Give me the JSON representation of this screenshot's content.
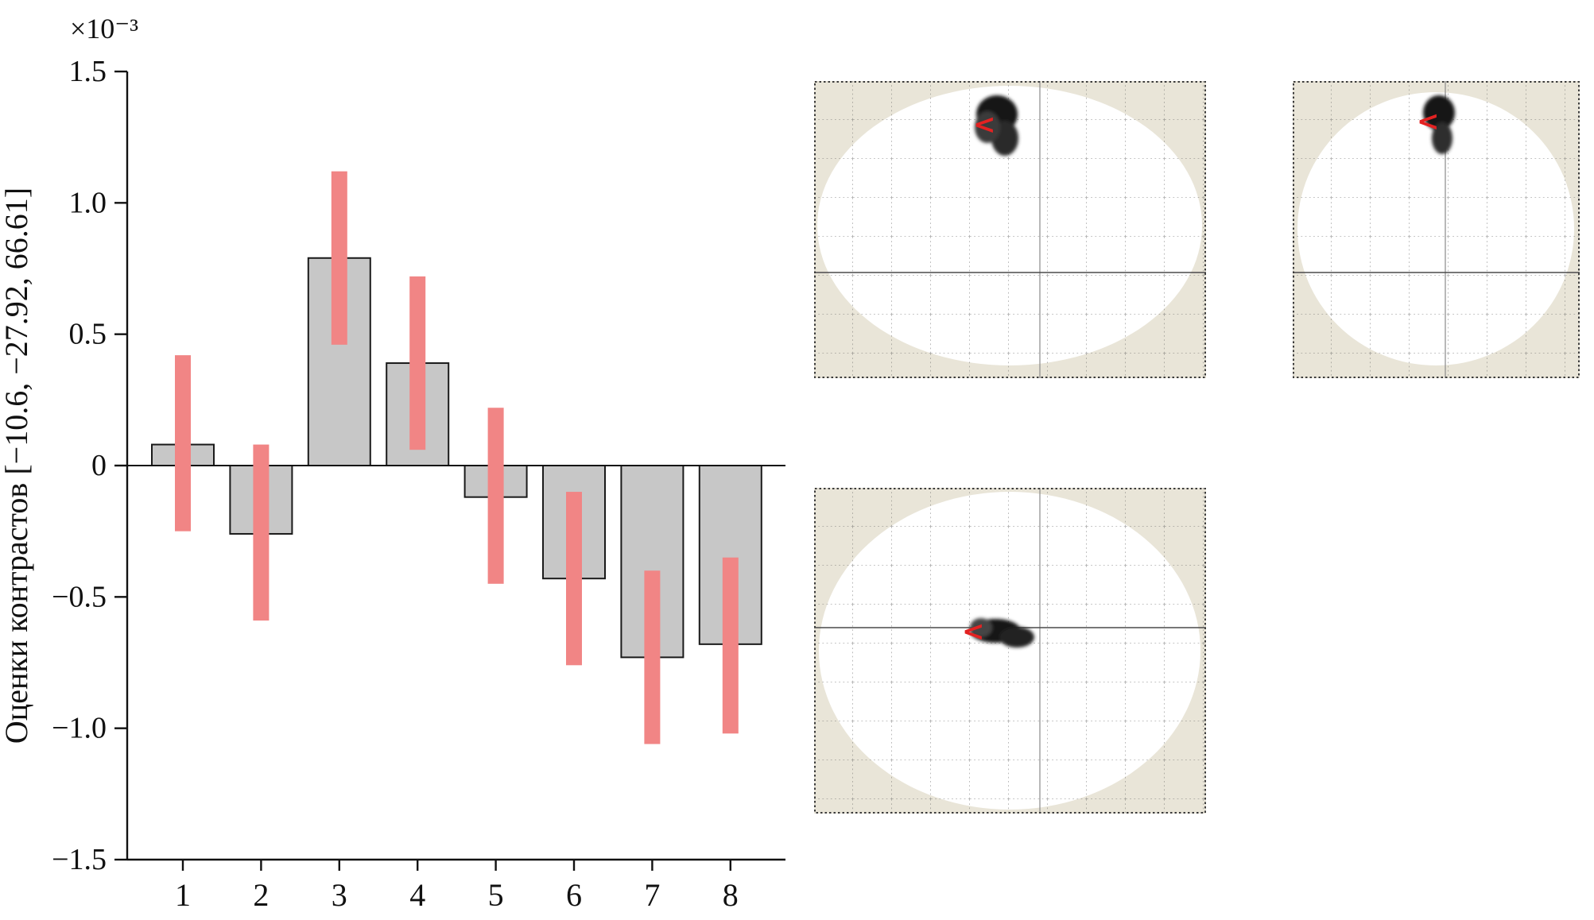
{
  "chart_data": {
    "type": "bar",
    "title": "",
    "xlabel": "",
    "ylabel": "Оценки контрастов [−10.6, −27.92, 66.61]",
    "scale_label": "×10⁻³",
    "units_multiplier": "1e-3",
    "categories": [
      "1",
      "2",
      "3",
      "4",
      "5",
      "6",
      "7",
      "8"
    ],
    "values_e3": [
      0.08,
      -0.26,
      0.79,
      0.39,
      -0.12,
      -0.43,
      -0.73,
      -0.68
    ],
    "error_low_e3": [
      -0.25,
      -0.59,
      0.46,
      0.06,
      -0.45,
      -0.76,
      -1.06,
      -1.02
    ],
    "error_high_e3": [
      0.42,
      0.08,
      1.12,
      0.72,
      0.22,
      -0.1,
      -0.4,
      -0.35
    ],
    "ylim_e3": [
      -1.5,
      1.5
    ],
    "yticks": [
      {
        "value": 1.5,
        "label": "1.5"
      },
      {
        "value": 1.0,
        "label": "1.0"
      },
      {
        "value": 0.5,
        "label": "0.5"
      },
      {
        "value": 0,
        "label": "0"
      },
      {
        "value": -0.5,
        "label": "−0.5"
      },
      {
        "value": -1.0,
        "label": "−1.0"
      },
      {
        "value": -1.5,
        "label": "−1.5"
      }
    ],
    "grid": false,
    "legend": null,
    "bar_color": "#c7c7c7",
    "bar_edge_color": "#1a1a1a",
    "error_color": "#f18585"
  },
  "brain_views": {
    "marker_glyph": "<",
    "marker_color": "#e32222",
    "background_color": "#e9e5d8",
    "panels": [
      {
        "id": "sagittal",
        "label": "glass-brain-sagittal-projection"
      },
      {
        "id": "coronal",
        "label": "glass-brain-coronal-projection"
      },
      {
        "id": "axial",
        "label": "glass-brain-axial-projection"
      }
    ]
  }
}
